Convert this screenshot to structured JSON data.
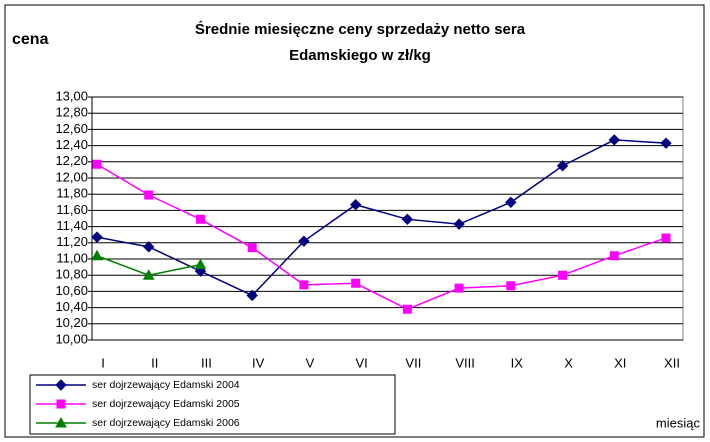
{
  "chart_data": {
    "type": "line",
    "title": [
      "Średnie miesięczne ceny sprzedaży netto sera",
      "Edamskiego w zł/kg"
    ],
    "y_label": "cena",
    "x_label": "miesiąc",
    "categories": [
      "I",
      "II",
      "III",
      "IV",
      "V",
      "VI",
      "VII",
      "VIII",
      "IX",
      "X",
      "XI",
      "XII"
    ],
    "series": [
      {
        "name": "ser dojrzewający Edamski 2004",
        "color": "#000080",
        "marker": "diamond",
        "values": [
          11.27,
          11.15,
          10.85,
          10.55,
          11.22,
          11.67,
          11.49,
          11.43,
          11.7,
          12.15,
          12.47,
          12.43
        ]
      },
      {
        "name": "ser dojrzewający Edamski 2005",
        "color": "#ff00ff",
        "marker": "square",
        "values": [
          12.17,
          11.79,
          11.49,
          11.14,
          10.68,
          10.7,
          10.38,
          10.64,
          10.67,
          10.8,
          11.04,
          11.26
        ]
      },
      {
        "name": "ser dojrzewający Edamski 2006",
        "color": "#008000",
        "marker": "triangle",
        "values": [
          11.04,
          10.8,
          10.93,
          null,
          null,
          null,
          null,
          null,
          null,
          null,
          null,
          null
        ]
      }
    ],
    "ylim": [
      10,
      13
    ],
    "yticks": [
      {
        "value": 10,
        "label": "10,00"
      },
      {
        "value": 10.2,
        "label": "10,20"
      },
      {
        "value": 10.4,
        "label": "10,40"
      },
      {
        "value": 10.6,
        "label": "10,60"
      },
      {
        "value": 10.8,
        "label": "10,80"
      },
      {
        "value": 11,
        "label": "11,00"
      },
      {
        "value": 11.2,
        "label": "11,20"
      },
      {
        "value": 11.4,
        "label": "11,40"
      },
      {
        "value": 11.6,
        "label": "11,60"
      },
      {
        "value": 11.8,
        "label": "11,80"
      },
      {
        "value": 12,
        "label": "12,00"
      },
      {
        "value": 12.2,
        "label": "12,20"
      },
      {
        "value": 12.4,
        "label": "12,40"
      },
      {
        "value": 12.6,
        "label": "12,60"
      },
      {
        "value": 12.8,
        "label": "12,80"
      },
      {
        "value": 13,
        "label": "13,00"
      }
    ],
    "grid": true,
    "legend": "bottom-left"
  }
}
